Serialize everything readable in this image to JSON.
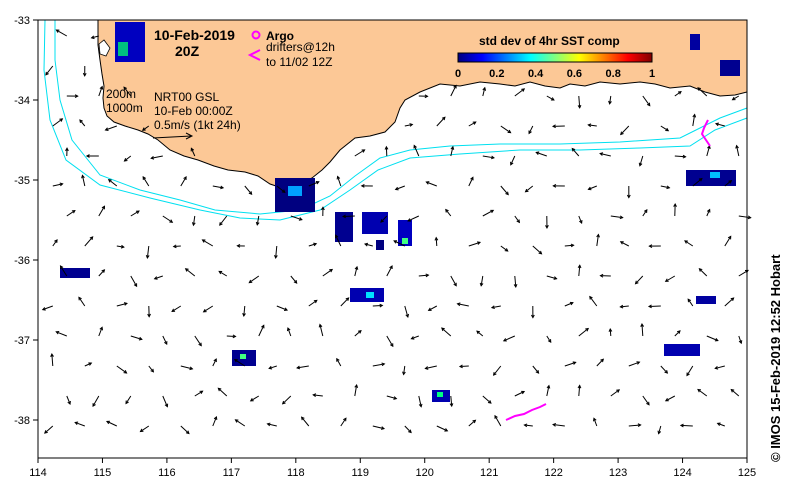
{
  "header": {
    "date": "10-Feb-2019",
    "hour": "20Z"
  },
  "legend": {
    "argo": "Argo",
    "drifters_line1": "drifters@12h",
    "drifters_line2": "to 11/02 12Z",
    "argo_color": "#ff00ff",
    "drifter_color": "#ff00ff"
  },
  "annotations": {
    "isobath_200": "200m",
    "isobath_1000": "1000m",
    "model": "NRT00 GSL",
    "model_time": "10-Feb 00:00Z",
    "scale": "0.5m/s (1kt 24h)"
  },
  "colorbar": {
    "title": "std dev of 4hr SST comp",
    "ticks": [
      "0",
      "0.2",
      "0.4",
      "0.6",
      "0.8",
      "1"
    ],
    "colors": [
      "#000080",
      "#0000ff",
      "#0080ff",
      "#00ffff",
      "#80ff80",
      "#ffff00",
      "#ff8000",
      "#ff0000",
      "#800000"
    ]
  },
  "axes": {
    "x_ticks": [
      "114",
      "115",
      "116",
      "117",
      "118",
      "119",
      "120",
      "121",
      "122",
      "123",
      "124",
      "125"
    ],
    "y_ticks": [
      "-33",
      "-34",
      "-35",
      "-36",
      "-37",
      "-38"
    ]
  },
  "credit": "© IMOS 15-Feb-2019 12:52 Hobart",
  "colors": {
    "land": "#fcc896",
    "isobath": "#00e0f0",
    "arrow": "#000000"
  }
}
